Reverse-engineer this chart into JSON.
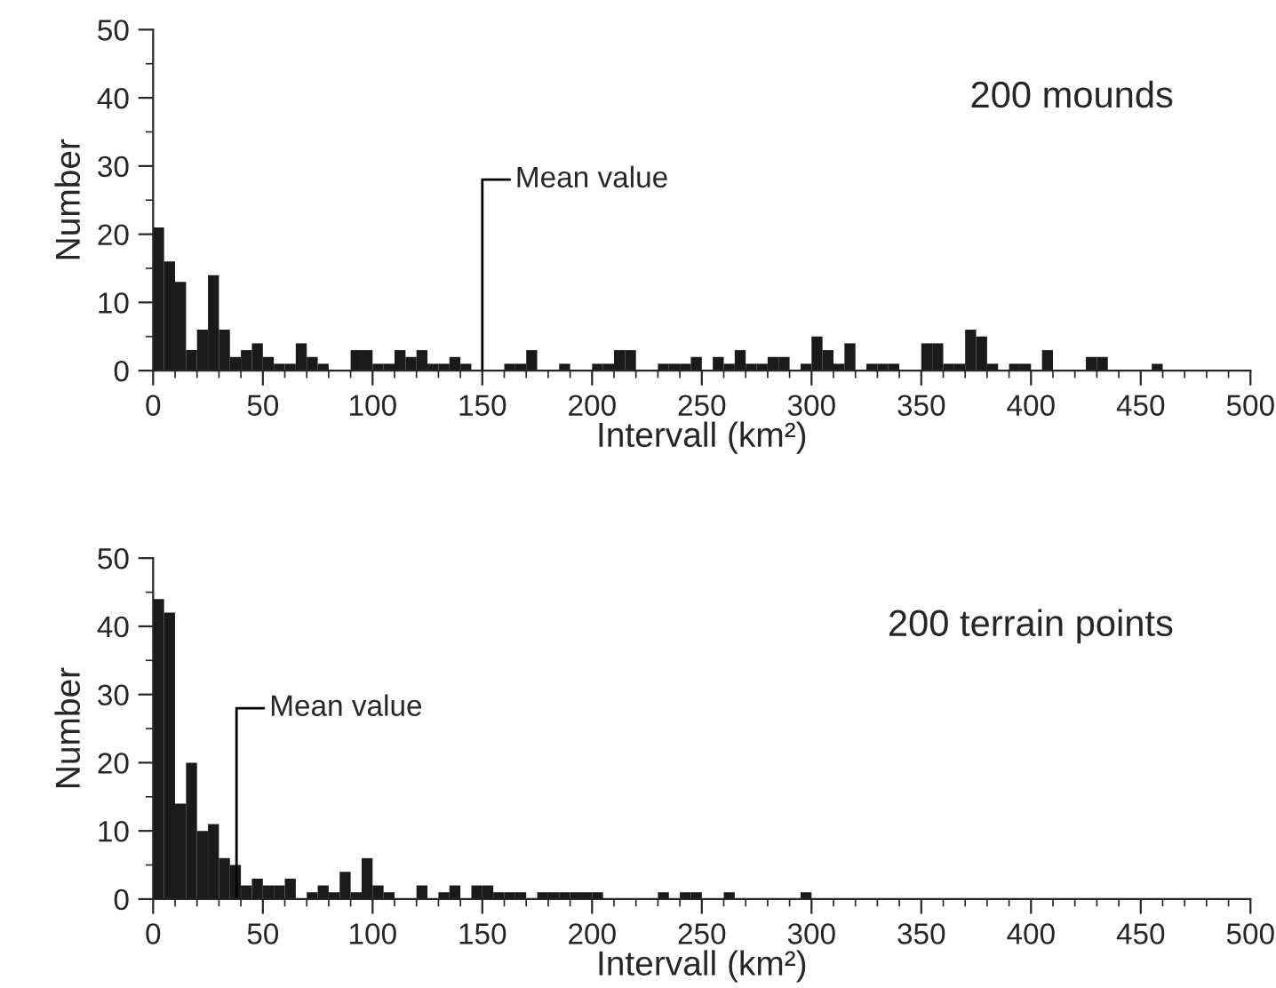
{
  "chart_data": [
    {
      "type": "histogram",
      "xlabel": "Intervall (km²)",
      "ylabel": "Number",
      "annotations": [
        "200 mounds"
      ],
      "color": "#1a1a1a",
      "bins": [
        0,
        5,
        10,
        15,
        20,
        25,
        30,
        35,
        40,
        45,
        50,
        55,
        60,
        65,
        70,
        75,
        80,
        85,
        90,
        95,
        100,
        105,
        110,
        115,
        120,
        125,
        130,
        135,
        140,
        145,
        150,
        155,
        160,
        165,
        170,
        175,
        180,
        185,
        190,
        195,
        200,
        205,
        210,
        215,
        220,
        225,
        230,
        235,
        240,
        245,
        250,
        255,
        260,
        265,
        270,
        275,
        280,
        285,
        290,
        295,
        300,
        305,
        310,
        315,
        320,
        325,
        330,
        335,
        340,
        345,
        350,
        355,
        360,
        365,
        370,
        375,
        380,
        385,
        390,
        395,
        400,
        405,
        410,
        415,
        420,
        425,
        430,
        435,
        440,
        445,
        450,
        455,
        460,
        465,
        470,
        475,
        480,
        485,
        490,
        495,
        500
      ],
      "values": [
        21,
        16,
        13,
        3,
        6,
        14,
        6,
        2,
        3,
        4,
        2,
        1,
        1,
        4,
        2,
        1,
        0,
        0,
        3,
        3,
        1,
        1,
        3,
        2,
        3,
        1,
        1,
        2,
        1,
        0,
        0,
        0,
        1,
        1,
        3,
        0,
        0,
        1,
        0,
        0,
        1,
        1,
        3,
        3,
        0,
        0,
        1,
        1,
        1,
        2,
        0,
        2,
        1,
        3,
        1,
        1,
        2,
        2,
        0,
        1,
        5,
        3,
        1,
        4,
        0,
        1,
        1,
        1,
        0,
        0,
        4,
        4,
        1,
        1,
        6,
        5,
        1,
        0,
        1,
        1,
        0,
        3,
        0,
        0,
        0,
        2,
        2,
        0,
        0,
        0,
        0,
        1,
        0,
        0,
        0,
        0,
        0,
        0,
        0,
        0
      ],
      "ref_lines": [
        {
          "axis": "x",
          "value": 150,
          "label": "Mean value"
        }
      ],
      "xlim": [
        0,
        500
      ],
      "xticks": [
        0,
        50,
        100,
        150,
        200,
        250,
        300,
        350,
        400,
        450,
        500
      ],
      "ylim": [
        0,
        50
      ],
      "yticks": [
        0,
        10,
        20,
        30,
        40,
        50
      ],
      "grid": false,
      "legend": false
    },
    {
      "type": "histogram",
      "xlabel": "Intervall (km²)",
      "ylabel": "Number",
      "annotations": [
        "200 terrain points"
      ],
      "color": "#1a1a1a",
      "bins": [
        0,
        5,
        10,
        15,
        20,
        25,
        30,
        35,
        40,
        45,
        50,
        55,
        60,
        65,
        70,
        75,
        80,
        85,
        90,
        95,
        100,
        105,
        110,
        115,
        120,
        125,
        130,
        135,
        140,
        145,
        150,
        155,
        160,
        165,
        170,
        175,
        180,
        185,
        190,
        195,
        200,
        205,
        210,
        215,
        220,
        225,
        230,
        235,
        240,
        245,
        250,
        255,
        260,
        265,
        270,
        275,
        280,
        285,
        290,
        295,
        300,
        305,
        310,
        315,
        320,
        325,
        330,
        335,
        340,
        345,
        350,
        355,
        360,
        365,
        370,
        375,
        380,
        385,
        390,
        395,
        400,
        405,
        410,
        415,
        420,
        425,
        430,
        435,
        440,
        445,
        450,
        455,
        460,
        465,
        470,
        475,
        480,
        485,
        490,
        495,
        500
      ],
      "values": [
        44,
        42,
        14,
        20,
        10,
        11,
        6,
        5,
        2,
        3,
        2,
        2,
        3,
        0,
        1,
        2,
        1,
        4,
        1,
        6,
        2,
        1,
        0,
        0,
        2,
        0,
        1,
        2,
        0,
        2,
        2,
        1,
        1,
        1,
        0,
        1,
        1,
        1,
        1,
        1,
        1,
        0,
        0,
        0,
        0,
        0,
        1,
        0,
        1,
        1,
        0,
        0,
        1,
        0,
        0,
        0,
        0,
        0,
        0,
        1,
        0,
        0,
        0,
        0,
        0,
        0,
        0,
        0,
        0,
        0,
        0,
        0,
        0,
        0,
        0,
        0,
        0,
        0,
        0,
        0,
        0,
        0,
        0,
        0,
        0,
        0,
        0,
        0,
        0,
        0,
        0,
        0,
        0,
        0,
        0,
        0,
        0,
        0,
        0,
        0
      ],
      "ref_lines": [
        {
          "axis": "x",
          "value": 38,
          "label": "Mean value"
        }
      ],
      "xlim": [
        0,
        500
      ],
      "xticks": [
        0,
        50,
        100,
        150,
        200,
        250,
        300,
        350,
        400,
        450,
        500
      ],
      "ylim": [
        0,
        50
      ],
      "yticks": [
        0,
        10,
        20,
        30,
        40,
        50
      ],
      "grid": false,
      "legend": false
    }
  ]
}
